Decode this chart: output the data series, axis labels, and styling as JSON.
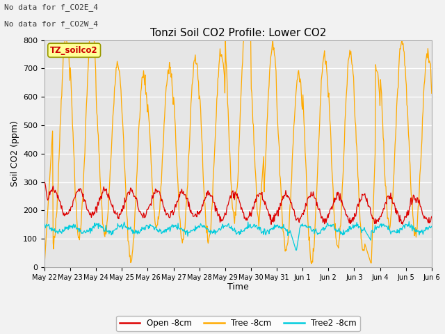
{
  "title": "Tonzi Soil CO2 Profile: Lower CO2",
  "ylabel": "Soil CO2 (ppm)",
  "xlabel": "Time",
  "top_left_text_1": "No data for f_CO2E_4",
  "top_left_text_2": "No data for f_CO2W_4",
  "box_label": "TZ_soilco2",
  "ylim": [
    0,
    800
  ],
  "bg_color": "#e6e6e6",
  "fig_color": "#f2f2f2",
  "grid_color": "#ffffff",
  "line_open_color": "#dd0000",
  "line_tree_color": "#ffaa00",
  "line_tree2_color": "#00ccdd",
  "legend_labels": [
    "Open -8cm",
    "Tree -8cm",
    "Tree2 -8cm"
  ],
  "tick_labels": [
    "May 22",
    "May 23",
    "May 24",
    "May 25",
    "May 26",
    "May 27",
    "May 28",
    "May 29",
    "May 30",
    "May 31",
    "Jun 1",
    "Jun 2",
    "Jun 3",
    "Jun 4",
    "Jun 5",
    "Jun 6"
  ],
  "n_days": 15,
  "pts_per_day": 48
}
